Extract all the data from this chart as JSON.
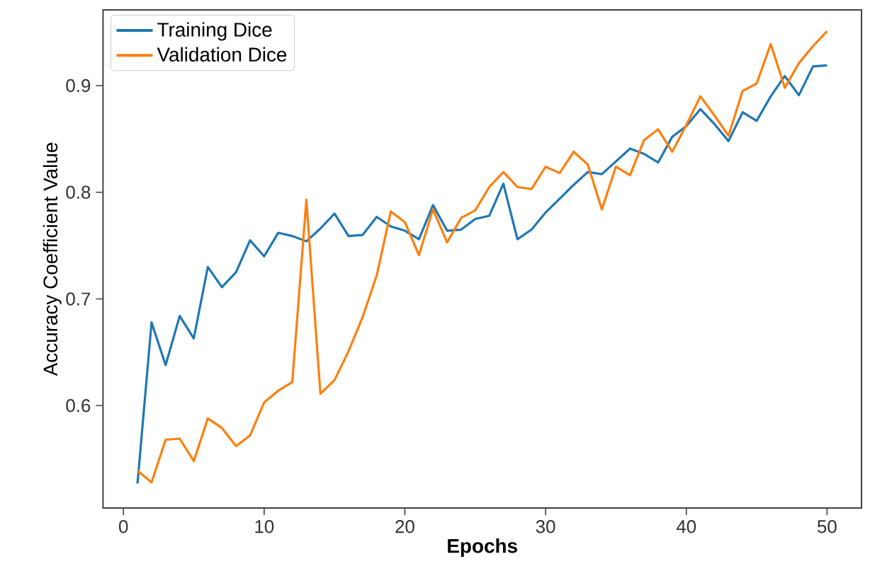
{
  "chart_data": {
    "type": "line",
    "xlabel": "Epochs",
    "ylabel": "Accuracy Coefficient Value",
    "x": [
      1,
      2,
      3,
      4,
      5,
      6,
      7,
      8,
      9,
      10,
      11,
      12,
      13,
      14,
      15,
      16,
      17,
      18,
      19,
      20,
      21,
      22,
      23,
      24,
      25,
      26,
      27,
      28,
      29,
      30,
      31,
      32,
      33,
      34,
      35,
      36,
      37,
      38,
      39,
      40,
      41,
      42,
      43,
      44,
      45,
      46,
      47,
      48,
      49,
      50
    ],
    "series": [
      {
        "name": "Training Dice",
        "color": "#1f77b4",
        "values": [
          0.527,
          0.678,
          0.638,
          0.684,
          0.663,
          0.73,
          0.711,
          0.725,
          0.755,
          0.74,
          0.762,
          0.759,
          0.754,
          0.766,
          0.78,
          0.759,
          0.76,
          0.777,
          0.768,
          0.764,
          0.756,
          0.788,
          0.764,
          0.765,
          0.775,
          0.778,
          0.808,
          0.756,
          0.765,
          0.781,
          0.794,
          0.807,
          0.819,
          0.817,
          0.829,
          0.841,
          0.836,
          0.828,
          0.852,
          0.862,
          0.878,
          0.864,
          0.848,
          0.875,
          0.867,
          0.89,
          0.909,
          0.891,
          0.918,
          0.919
        ]
      },
      {
        "name": "Validation Dice",
        "color": "#ff7f0e",
        "values": [
          0.539,
          0.528,
          0.568,
          0.569,
          0.548,
          0.588,
          0.579,
          0.562,
          0.572,
          0.603,
          0.614,
          0.622,
          0.793,
          0.611,
          0.624,
          0.651,
          0.683,
          0.722,
          0.782,
          0.772,
          0.741,
          0.784,
          0.753,
          0.776,
          0.783,
          0.805,
          0.819,
          0.805,
          0.803,
          0.824,
          0.818,
          0.838,
          0.826,
          0.784,
          0.824,
          0.816,
          0.849,
          0.859,
          0.838,
          0.863,
          0.89,
          0.872,
          0.853,
          0.895,
          0.902,
          0.939,
          0.898,
          0.921,
          0.937,
          0.951
        ]
      }
    ],
    "xlim": [
      -1.45,
      52.45
    ],
    "ylim": [
      0.504,
      0.971
    ],
    "xticks": [
      0,
      10,
      20,
      30,
      40,
      50
    ],
    "yticks": [
      0.6,
      0.7,
      0.8,
      0.9
    ],
    "legend": "top left",
    "grid": false,
    "marker": "none",
    "line_style": "solid"
  }
}
